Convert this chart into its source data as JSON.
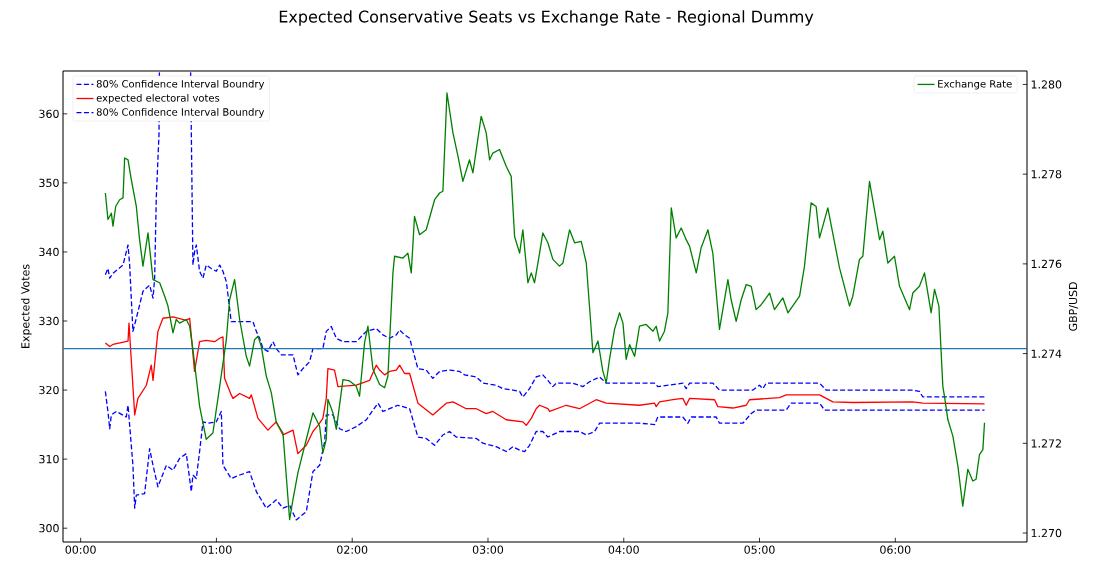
{
  "chart_data": {
    "type": "line",
    "title": "Expected Conservative Seats vs Exchange Rate - Regional Dummy",
    "ylabel": "Expected Votes",
    "y2label": "GBP/USD",
    "xlim": [
      -0.13,
      6.97
    ],
    "xticks": [
      {
        "value": 0,
        "label": "00:00"
      },
      {
        "value": 1,
        "label": "01:00"
      },
      {
        "value": 2,
        "label": "02:00"
      },
      {
        "value": 3,
        "label": "03:00"
      },
      {
        "value": 4,
        "label": "04:00"
      },
      {
        "value": 5,
        "label": "05:00"
      },
      {
        "value": 6,
        "label": "06:00"
      }
    ],
    "ylim": [
      298.0,
      366.2
    ],
    "yticks": [
      300,
      310,
      320,
      330,
      340,
      350,
      360
    ],
    "y2lim": [
      1.2698,
      1.2803
    ],
    "y2ticks": [
      {
        "value": 1.27,
        "label": "1.270"
      },
      {
        "value": 1.272,
        "label": "1.272"
      },
      {
        "value": 1.274,
        "label": "1.274"
      },
      {
        "value": 1.276,
        "label": "1.276"
      },
      {
        "value": 1.278,
        "label": "1.278"
      },
      {
        "value": 1.28,
        "label": "1.280"
      }
    ],
    "legend": "top left",
    "ref_lines": [
      {
        "axis": "y",
        "value": 326,
        "color": "#1f77b4"
      }
    ],
    "series": [
      {
        "name": "80% Confidence Interval Boundry",
        "color": "#0000ff",
        "line_style": "dashed",
        "x": [
          0.182,
          0.201,
          0.214,
          0.238,
          0.312,
          0.336,
          0.349,
          0.361,
          0.385,
          0.41,
          0.459,
          0.508,
          0.533,
          0.545,
          0.557,
          0.577,
          0.58,
          0.7,
          0.81,
          0.815,
          0.827,
          0.839,
          0.852,
          0.864,
          0.876,
          0.901,
          0.925,
          0.962,
          0.999,
          1.024,
          1.048,
          1.073,
          1.109,
          1.269,
          1.294,
          1.318,
          1.343,
          1.379,
          1.416,
          1.441,
          1.478,
          1.564,
          1.6,
          1.637,
          1.686,
          1.711,
          1.784,
          1.809,
          1.846,
          1.883,
          1.932,
          2.03,
          2.104,
          2.177,
          2.226,
          2.275,
          2.325,
          2.349,
          2.386,
          2.423,
          2.484,
          2.545,
          2.594,
          2.644,
          2.717,
          2.791,
          2.828,
          2.914,
          2.963,
          3.061,
          3.11,
          3.184,
          3.233,
          3.257,
          3.306,
          3.355,
          3.404,
          3.441,
          3.478,
          3.503,
          3.625,
          3.699,
          3.748,
          3.822,
          3.871,
          4.116,
          4.227,
          4.251,
          4.435,
          4.46,
          4.485,
          4.656,
          4.705,
          4.951,
          5.0,
          5.025,
          5.049,
          5.442,
          5.491,
          6.129,
          6.178,
          6.203,
          6.657
        ],
        "values": [
          336.7,
          337.6,
          336.2,
          336.9,
          338.1,
          340.0,
          341.0,
          338.1,
          328.5,
          330.4,
          334.3,
          335.2,
          333.3,
          336.2,
          347.8,
          357.0,
          366.0,
          null,
          366.0,
          357.4,
          338.1,
          340.0,
          341.0,
          339.1,
          337.2,
          336.2,
          338.1,
          337.6,
          337.2,
          338.1,
          337.2,
          335.7,
          329.9,
          329.9,
          328.5,
          327.5,
          326.0,
          325.6,
          327.0,
          326.0,
          325.1,
          325.1,
          322.2,
          323.1,
          324.1,
          326.0,
          326.0,
          328.5,
          329.2,
          327.5,
          327.0,
          327.0,
          328.5,
          328.9,
          328.0,
          327.5,
          328.0,
          328.7,
          328.0,
          327.5,
          323.1,
          322.9,
          321.7,
          322.7,
          322.9,
          322.7,
          322.2,
          321.9,
          321.0,
          320.7,
          320.2,
          320.0,
          319.8,
          319.0,
          320.2,
          321.9,
          322.2,
          321.4,
          320.5,
          321.0,
          321.0,
          320.5,
          321.2,
          321.9,
          321.0,
          321.0,
          321.0,
          320.5,
          321.0,
          320.2,
          321.0,
          321.0,
          320.0,
          320.0,
          320.7,
          320.2,
          321.0,
          321.0,
          320.0,
          320.0,
          319.8,
          319.0,
          319.0
        ]
      },
      {
        "name": "expected electoral votes",
        "color": "#ff0000",
        "x": [
          0.182,
          0.214,
          0.238,
          0.349,
          0.356,
          0.398,
          0.422,
          0.484,
          0.52,
          0.533,
          0.569,
          0.606,
          0.68,
          0.778,
          0.803,
          0.839,
          0.876,
          0.925,
          0.987,
          1.024,
          1.048,
          1.06,
          1.109,
          1.122,
          1.171,
          1.244,
          1.257,
          1.306,
          1.379,
          1.441,
          1.49,
          1.564,
          1.6,
          1.662,
          1.711,
          1.748,
          1.784,
          1.809,
          1.821,
          1.87,
          1.895,
          2.03,
          2.128,
          2.177,
          2.202,
          2.239,
          2.275,
          2.325,
          2.349,
          2.386,
          2.423,
          2.484,
          2.594,
          2.693,
          2.742,
          2.84,
          2.914,
          2.987,
          3.036,
          3.135,
          3.257,
          3.282,
          3.319,
          3.355,
          3.38,
          3.441,
          3.454,
          3.576,
          3.674,
          3.797,
          3.871,
          4.116,
          4.227,
          4.239,
          4.264,
          4.362,
          4.435,
          4.46,
          4.485,
          4.669,
          4.693,
          4.804,
          4.902,
          4.926,
          5.147,
          5.196,
          5.442,
          5.54,
          5.687,
          6.129,
          6.203,
          6.657
        ],
        "values": [
          326.8,
          326.3,
          326.6,
          327.1,
          329.7,
          316.4,
          318.8,
          320.7,
          323.6,
          321.4,
          328.5,
          330.4,
          330.6,
          330.1,
          330.4,
          322.7,
          327.0,
          327.2,
          327.0,
          327.5,
          327.7,
          321.7,
          319.3,
          318.8,
          319.5,
          318.8,
          319.3,
          315.9,
          314.2,
          315.4,
          313.5,
          314.2,
          310.8,
          312.0,
          314.0,
          314.9,
          315.9,
          318.8,
          323.1,
          322.9,
          320.5,
          320.7,
          321.4,
          323.6,
          322.9,
          322.2,
          322.7,
          322.9,
          323.6,
          322.4,
          322.4,
          318.1,
          316.4,
          318.1,
          318.3,
          317.3,
          317.3,
          316.6,
          316.9,
          315.7,
          315.4,
          314.9,
          315.9,
          317.3,
          317.8,
          317.3,
          316.9,
          317.8,
          317.3,
          318.6,
          318.1,
          317.8,
          318.1,
          317.6,
          318.3,
          318.6,
          318.8,
          317.8,
          318.8,
          318.6,
          317.6,
          317.4,
          317.8,
          318.6,
          318.9,
          319.3,
          319.3,
          318.3,
          318.2,
          318.3,
          318.1,
          318.0
        ]
      },
      {
        "name": "80% Confidence Interval Boundry",
        "color": "#0000ff",
        "line_style": "dashed",
        "x": [
          0.182,
          0.201,
          0.214,
          0.226,
          0.263,
          0.336,
          0.349,
          0.385,
          0.398,
          0.41,
          0.471,
          0.508,
          0.533,
          0.569,
          0.631,
          0.68,
          0.729,
          0.778,
          0.815,
          0.827,
          0.852,
          0.876,
          0.901,
          0.938,
          0.999,
          1.036,
          1.048,
          1.109,
          1.171,
          1.244,
          1.294,
          1.367,
          1.441,
          1.49,
          1.539,
          1.588,
          1.662,
          1.711,
          1.76,
          1.797,
          1.809,
          1.858,
          1.907,
          1.956,
          2.03,
          2.104,
          2.153,
          2.19,
          2.226,
          2.275,
          2.337,
          2.423,
          2.484,
          2.545,
          2.607,
          2.668,
          2.717,
          2.766,
          2.914,
          2.963,
          3.061,
          3.135,
          3.184,
          3.233,
          3.27,
          3.306,
          3.355,
          3.404,
          3.441,
          3.527,
          3.674,
          3.724,
          3.785,
          3.822,
          4.116,
          4.227,
          4.251,
          4.435,
          4.472,
          4.497,
          4.681,
          4.705,
          4.877,
          4.939,
          4.975,
          5.196,
          5.233,
          5.442,
          5.479,
          6.129,
          6.657
        ],
        "values": [
          319.8,
          316.9,
          314.4,
          316.4,
          316.9,
          316.1,
          317.8,
          309.1,
          302.9,
          304.8,
          305.0,
          311.5,
          309.1,
          306.0,
          309.1,
          308.4,
          310.1,
          310.8,
          305.3,
          307.7,
          307.2,
          311.1,
          315.4,
          315.2,
          315.4,
          316.9,
          309.1,
          307.2,
          307.7,
          308.2,
          305.3,
          302.9,
          304.1,
          302.9,
          303.3,
          301.2,
          302.4,
          308.2,
          309.1,
          312.5,
          316.4,
          316.4,
          314.4,
          314.0,
          314.7,
          315.7,
          317.1,
          318.1,
          316.9,
          317.3,
          317.8,
          317.3,
          313.2,
          313.0,
          312.0,
          313.5,
          314.0,
          313.2,
          313.0,
          312.3,
          311.8,
          311.1,
          311.8,
          311.3,
          311.1,
          312.0,
          314.0,
          314.0,
          313.2,
          314.0,
          314.0,
          313.5,
          314.0,
          315.2,
          315.2,
          315.0,
          316.1,
          316.1,
          315.2,
          316.1,
          316.1,
          315.2,
          315.2,
          316.6,
          317.1,
          317.1,
          318.1,
          318.1,
          317.1,
          317.1,
          317.1
        ]
      },
      {
        "name": "Exchange Rate",
        "color": "#008000",
        "axis": "y2",
        "x": [
          0.182,
          0.201,
          0.226,
          0.238,
          0.258,
          0.287,
          0.312,
          0.324,
          0.349,
          0.373,
          0.41,
          0.434,
          0.459,
          0.496,
          0.533,
          0.582,
          0.619,
          0.643,
          0.68,
          0.704,
          0.729,
          0.778,
          0.803,
          0.827,
          0.876,
          0.925,
          0.974,
          1.024,
          1.073,
          1.097,
          1.134,
          1.171,
          1.22,
          1.244,
          1.281,
          1.306,
          1.33,
          1.367,
          1.404,
          1.441,
          1.49,
          1.539,
          1.564,
          1.6,
          1.662,
          1.711,
          1.76,
          1.784,
          1.809,
          1.821,
          1.858,
          1.883,
          1.932,
          1.981,
          2.03,
          2.054,
          2.091,
          2.116,
          2.153,
          2.202,
          2.239,
          2.263,
          2.3,
          2.312,
          2.374,
          2.41,
          2.435,
          2.459,
          2.496,
          2.545,
          2.607,
          2.644,
          2.668,
          2.698,
          2.742,
          2.779,
          2.815,
          2.864,
          2.889,
          2.95,
          2.987,
          3.012,
          3.036,
          3.085,
          3.135,
          3.171,
          3.196,
          3.233,
          3.257,
          3.294,
          3.319,
          3.343,
          3.38,
          3.404,
          3.441,
          3.478,
          3.527,
          3.552,
          3.601,
          3.638,
          3.687,
          3.724,
          3.773,
          3.81,
          3.846,
          3.871,
          3.895,
          3.932,
          3.969,
          3.994,
          4.018,
          4.043,
          4.08,
          4.116,
          4.165,
          4.215,
          4.239,
          4.264,
          4.3,
          4.325,
          4.35,
          4.386,
          4.423,
          4.46,
          4.485,
          4.534,
          4.57,
          4.62,
          4.656,
          4.705,
          4.767,
          4.791,
          4.828,
          4.865,
          4.902,
          4.939,
          4.975,
          5.012,
          5.074,
          5.11,
          5.172,
          5.209,
          5.295,
          5.331,
          5.38,
          5.417,
          5.442,
          5.503,
          5.589,
          5.663,
          5.687,
          5.736,
          5.761,
          5.81,
          5.859,
          5.884,
          5.908,
          5.945,
          5.994,
          6.031,
          6.105,
          6.129,
          6.178,
          6.215,
          6.264,
          6.289,
          6.321,
          6.35,
          6.362,
          6.387,
          6.424,
          6.461,
          6.497,
          6.534,
          6.571,
          6.595,
          6.62,
          6.645,
          6.657
        ],
        "values": [
          1.27758,
          1.27699,
          1.27713,
          1.27684,
          1.27728,
          1.27743,
          1.27747,
          1.27836,
          1.27832,
          1.27788,
          1.27728,
          1.27654,
          1.27595,
          1.27669,
          1.27565,
          1.27558,
          1.27528,
          1.27506,
          1.27446,
          1.27476,
          1.27468,
          1.27476,
          1.27461,
          1.27409,
          1.27283,
          1.27209,
          1.27223,
          1.27327,
          1.27431,
          1.2752,
          1.27565,
          1.27476,
          1.27394,
          1.27372,
          1.27431,
          1.27439,
          1.27416,
          1.2735,
          1.27313,
          1.27246,
          1.27223,
          1.2703,
          1.27075,
          1.27134,
          1.27209,
          1.27268,
          1.27238,
          1.27179,
          1.27209,
          1.27298,
          1.27268,
          1.27231,
          1.27342,
          1.27339,
          1.27327,
          1.27305,
          1.27424,
          1.27461,
          1.27365,
          1.27331,
          1.27324,
          1.2735,
          1.2758,
          1.27617,
          1.27613,
          1.27624,
          1.2758,
          1.27706,
          1.27665,
          1.27676,
          1.27743,
          1.27758,
          1.27762,
          1.27981,
          1.27892,
          1.2784,
          1.27784,
          1.27832,
          1.27803,
          1.27929,
          1.27892,
          1.27832,
          1.27847,
          1.27855,
          1.27817,
          1.27795,
          1.27661,
          1.27624,
          1.27676,
          1.27558,
          1.2758,
          1.27558,
          1.27624,
          1.27669,
          1.27647,
          1.2761,
          1.27595,
          1.27602,
          1.27676,
          1.27647,
          1.2765,
          1.27602,
          1.27402,
          1.27428,
          1.27361,
          1.27335,
          1.27387,
          1.27454,
          1.27491,
          1.27468,
          1.27387,
          1.2742,
          1.27394,
          1.27461,
          1.27465,
          1.2745,
          1.27461,
          1.27428,
          1.2745,
          1.27491,
          1.27725,
          1.27658,
          1.2768,
          1.27654,
          1.27639,
          1.2758,
          1.27636,
          1.27676,
          1.27624,
          1.27454,
          1.27565,
          1.2752,
          1.27472,
          1.2752,
          1.27554,
          1.2755,
          1.27498,
          1.27509,
          1.27535,
          1.27498,
          1.27524,
          1.27491,
          1.27528,
          1.27595,
          1.27736,
          1.27728,
          1.27658,
          1.27725,
          1.27591,
          1.27506,
          1.27528,
          1.2761,
          1.27617,
          1.27784,
          1.27699,
          1.27654,
          1.27673,
          1.27602,
          1.27617,
          1.2755,
          1.27498,
          1.27535,
          1.2755,
          1.2758,
          1.27491,
          1.27543,
          1.27506,
          1.27327,
          1.27305,
          1.27253,
          1.27216,
          1.27149,
          1.2706,
          1.27142,
          1.27116,
          1.2712,
          1.27175,
          1.27186,
          1.27246
        ]
      }
    ]
  }
}
